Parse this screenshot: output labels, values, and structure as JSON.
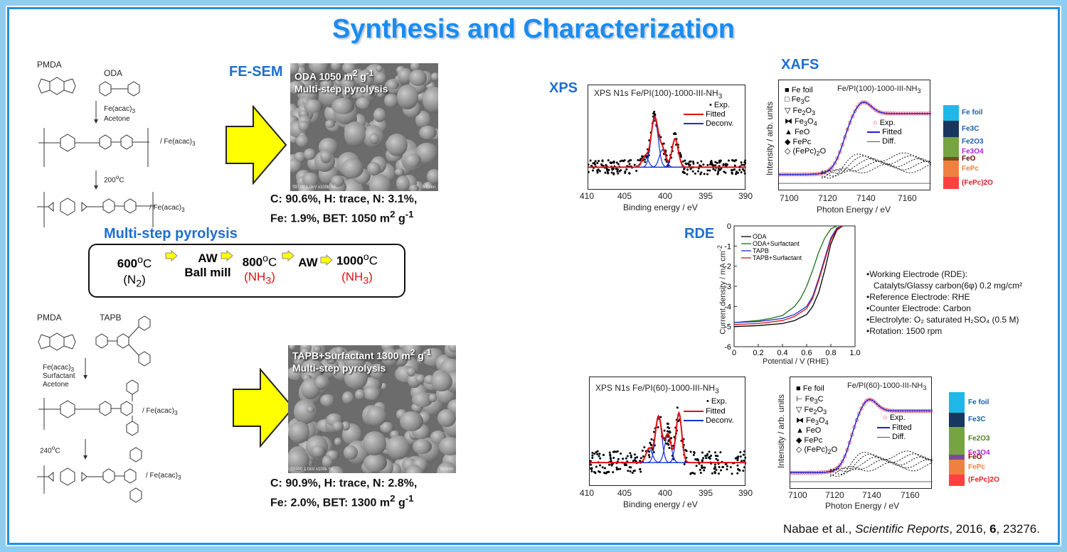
{
  "title": "Synthesis and Characterization",
  "fesem_label": "FE-SEM",
  "pyrolysis_label": "Multi-step pyrolysis",
  "scheme1": {
    "monomer1": "PMDA",
    "monomer2": "ODA",
    "reagent": "Fe(acac)",
    "reagent_sub": "3",
    "solvent": "Acetone",
    "temperature": "200",
    "salt": "/ Fe(acac)",
    "salt_sub": "3"
  },
  "scheme2": {
    "monomer1": "PMDA",
    "monomer2": "TAPB",
    "reagent": "Fe(acac)",
    "reagent_sub": "3",
    "surfactant": "Surfactant",
    "solvent": "Acetone",
    "temperature": "240",
    "salt": "/ Fe(acac)",
    "salt_sub": "3"
  },
  "sem1": {
    "caption_main": "ODA 1050 m",
    "caption_sup": "2",
    "caption_tail": " g",
    "caption_exp": "-1",
    "caption_line2": "Multi-step pyrolysis",
    "footer_left": "S5500 1.0kV x100k SE",
    "footer_right": "500nm",
    "comp_line1": "C: 90.6%, H: trace, N: 3.1%,",
    "comp_line2_a": "Fe: 1.9%, BET: 1050 m",
    "comp_line2_sup": "2",
    "comp_line2_b": " g",
    "comp_line2_exp": "-1"
  },
  "sem2": {
    "caption_main": "TAPB+Surfactant 1300 m",
    "caption_sup": "2",
    "caption_tail": " g",
    "caption_exp": "-1",
    "caption_line2": "Multi-step pyrolysis",
    "footer_left": "S5500 1.0kV x100k SE",
    "footer_right": "500nm",
    "comp_line1": "C: 90.9%, H: trace, N: 2.8%,",
    "comp_line2_a": "Fe: 2.0%, BET: 1300 m",
    "comp_line2_sup": "2",
    "comp_line2_b": " g",
    "comp_line2_exp": "-1"
  },
  "process": {
    "step1_temp": "600",
    "step1_unit": "C",
    "step1_gas": "(N",
    "step1_gas_sub": "2",
    "step1_gas_close": ")",
    "step2_line1": "AW",
    "step2_line2": "Ball mill",
    "step3_temp": "800",
    "step3_unit": "C",
    "step3_gas": "(NH",
    "step3_gas_sub": "3",
    "step3_gas_close": ")",
    "step4": "AW",
    "step5_temp": "1000",
    "step5_unit": "C",
    "step5_gas": "(NH",
    "step5_gas_sub": "3",
    "step5_gas_close": ")",
    "degree": "o"
  },
  "xps_label": "XPS",
  "xafs_label": "XAFS",
  "rde_label": "RDE",
  "xps1": {
    "title": "XPS N1s   Fe/PI(100)-1000-III-NH",
    "title_sub": "3",
    "xlabel": "Binding energy  / eV",
    "ticks": [
      "410",
      "405",
      "400",
      "395",
      "390"
    ],
    "legend": [
      "Exp.",
      "Fitted",
      "Deconv."
    ]
  },
  "xps2": {
    "title": "XPS N1s   Fe/PI(60)-1000-III-NH",
    "title_sub": "3",
    "xlabel": "Binding energy  / eV",
    "ticks": [
      "410",
      "405",
      "400",
      "395",
      "390"
    ],
    "legend": [
      "Exp.",
      "Fitted",
      "Deconv."
    ]
  },
  "xafs1": {
    "title": "Fe/PI(100)-1000-III-NH",
    "title_sub": "3",
    "xlabel": "Photon Energy / eV",
    "ylabel": "Intensity / arb. units",
    "ticks": [
      "7100",
      "7120",
      "7140",
      "7160"
    ],
    "refs": [
      "Fe foil",
      "Fe3C",
      "Fe2O3",
      "Fe3O4",
      "FeO",
      "FePc",
      "(FePc)2O"
    ],
    "fit_legend": [
      "Exp.",
      "Fitted",
      "Diff."
    ]
  },
  "xafs2": {
    "title": "Fe/PI(60)-1000-III-NH",
    "title_sub": "3",
    "xlabel": "Photon Energy / eV",
    "ylabel": "Intensity / arb. units",
    "ticks": [
      "7100",
      "7120",
      "7140",
      "7160"
    ],
    "refs": [
      "Fe foil",
      "Fe3C",
      "Fe2O3",
      "Fe3O4",
      "FeO",
      "FePc",
      "(FePc)2O"
    ],
    "fit_legend": [
      "Exp.",
      "Fitted",
      "Diff."
    ]
  },
  "composition1": [
    {
      "label": "Fe foil",
      "fraction": 0.19,
      "color": "#1fb8e8",
      "text_color": "#1a5fb0"
    },
    {
      "label": "Fe3C",
      "fraction": 0.19,
      "color": "#17375e",
      "text_color": "#ffffff"
    },
    {
      "label": "Fe2O3",
      "fraction": 0.12,
      "color": "#77a442",
      "text_color": "#ffffff"
    },
    {
      "label": "Fe3O4",
      "fraction": 0.12,
      "color": "#77a442",
      "text_color": "#b020e0"
    },
    {
      "label": "FeO",
      "fraction": 0.04,
      "color": "#7a4b20",
      "text_color": "#6a0000"
    },
    {
      "label": "FePc",
      "fraction": 0.2,
      "color": "#f08040",
      "text_color": "#f08040"
    },
    {
      "label": "(FePc)2O",
      "fraction": 0.14,
      "color": "#ff4040",
      "text_color": "#e02020"
    }
  ],
  "composition2": [
    {
      "label": "Fe foil",
      "fraction": 0.22,
      "color": "#1fb8e8",
      "text_color": "#1a5fb0"
    },
    {
      "label": "Fe3C",
      "fraction": 0.15,
      "color": "#17375e",
      "text_color": "#1a5fb0"
    },
    {
      "label": "Fe2O3",
      "fraction": 0.26,
      "color": "#77a442",
      "text_color": "#4a8020"
    },
    {
      "label": "Fe3O4",
      "fraction": 0.04,
      "color": "#77a442",
      "text_color": "#b020e0"
    },
    {
      "label": "FeO",
      "fraction": 0.05,
      "color": "#7a4b98",
      "text_color": "#8a0000"
    },
    {
      "label": "FePc",
      "fraction": 0.16,
      "color": "#f08040",
      "text_color": "#f08040"
    },
    {
      "label": "(FePc)2O",
      "fraction": 0.12,
      "color": "#ff4040",
      "text_color": "#e02020"
    }
  ],
  "rde": {
    "xlabel": "Potential / V (RHE)",
    "ylabel": "Current density / mA cm",
    "ylabel_exp": "-2",
    "xticks": [
      "0",
      "0.2",
      "0.4",
      "0.6",
      "0.8",
      "1.0"
    ],
    "yticks": [
      "0",
      "-1",
      "-2",
      "-3",
      "-4",
      "-5",
      "-6"
    ],
    "legend": [
      "ODA",
      "ODA+Surfactant",
      "TAPB",
      "TAPB+Surfactant"
    ]
  },
  "chart_data": {
    "type": "line",
    "xlabel": "Potential / V (RHE)",
    "ylabel": "Current density / mA cm-2",
    "xlim": [
      0,
      1.0
    ],
    "ylim": [
      -6,
      0
    ],
    "series": [
      {
        "name": "ODA",
        "color": "#000000",
        "x": [
          0,
          0.2,
          0.4,
          0.5,
          0.6,
          0.65,
          0.7,
          0.75,
          0.8,
          0.85,
          0.9
        ],
        "y": [
          -5.0,
          -4.95,
          -4.85,
          -4.7,
          -4.4,
          -4.0,
          -3.3,
          -2.2,
          -0.9,
          -0.2,
          0.0
        ]
      },
      {
        "name": "ODA+Surfactant",
        "color": "#1a6e1a",
        "x": [
          0,
          0.2,
          0.3,
          0.4,
          0.5,
          0.55,
          0.6,
          0.65,
          0.7,
          0.75,
          0.8,
          0.85
        ],
        "y": [
          -4.8,
          -4.7,
          -4.6,
          -4.45,
          -4.0,
          -3.6,
          -3.0,
          -2.2,
          -1.3,
          -0.6,
          -0.15,
          0.0
        ]
      },
      {
        "name": "TAPB",
        "color": "#1030d0",
        "x": [
          0,
          0.2,
          0.4,
          0.5,
          0.6,
          0.65,
          0.7,
          0.75,
          0.8,
          0.85,
          0.9
        ],
        "y": [
          -4.8,
          -4.75,
          -4.6,
          -4.4,
          -4.0,
          -3.5,
          -2.6,
          -1.6,
          -0.6,
          -0.1,
          0.0
        ]
      },
      {
        "name": "TAPB+Surfactant",
        "color": "#e01010",
        "x": [
          0,
          0.2,
          0.4,
          0.5,
          0.6,
          0.65,
          0.7,
          0.75,
          0.8,
          0.85,
          0.9
        ],
        "y": [
          -4.9,
          -4.85,
          -4.7,
          -4.5,
          -4.1,
          -3.6,
          -2.7,
          -1.7,
          -0.7,
          -0.15,
          0.0
        ]
      }
    ]
  },
  "rde_notes": [
    "•Working Electrode (RDE):",
    "   Catalyts/Glassy carbon(6φ) 0.2 mg/cm²",
    "•Reference Electrode:  RHE",
    "•Counter Electrode:   Carbon",
    "•Electrolyte:   O₂ saturated  H₂SO₄ (0.5 M)",
    "•Rotation:  1500 rpm"
  ],
  "citation": {
    "authors": "Nabae et al., ",
    "journal": "Scientific Reports",
    "year": ", 2016, ",
    "volume": "6",
    "pages": ", 23276."
  },
  "colors": {
    "title": "#1a8cf0",
    "accent_blue": "#1e6fd0",
    "arrow_yellow": "#ffff00",
    "nh3_red": "#e01010"
  }
}
